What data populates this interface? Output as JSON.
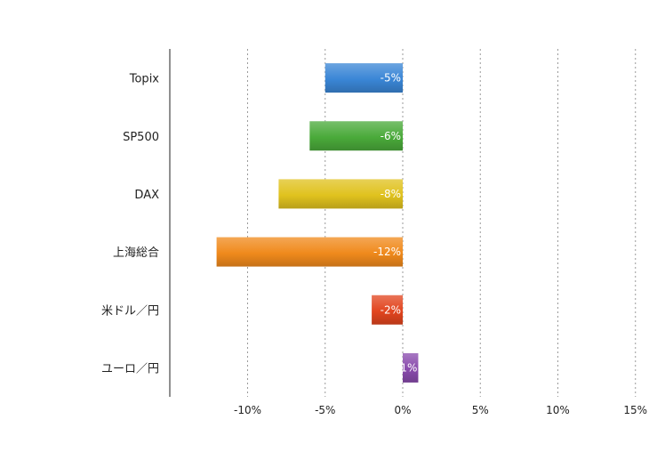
{
  "chart_data": {
    "type": "bar",
    "orientation": "horizontal",
    "categories": [
      "Topix",
      "SP500",
      "DAX",
      "上海総合",
      "米ドル／円",
      "ユーロ／円"
    ],
    "values": [
      -5,
      -6,
      -8,
      -12,
      -2,
      1
    ],
    "data_labels": [
      "-5%",
      "-6%",
      "-8%",
      "-12%",
      "-2%",
      "1%"
    ],
    "colors": [
      "#3a86d6",
      "#4aaa3a",
      "#e0c21e",
      "#f08a1c",
      "#e2451f",
      "#8a4bad"
    ],
    "xlim": [
      -15,
      15
    ],
    "xticks": [
      -10,
      -5,
      0,
      5,
      10,
      15
    ],
    "xtick_labels": [
      "-10%",
      "-5%",
      "0%",
      "5%",
      "10%",
      "15%"
    ],
    "grid": true,
    "legend": "none"
  }
}
